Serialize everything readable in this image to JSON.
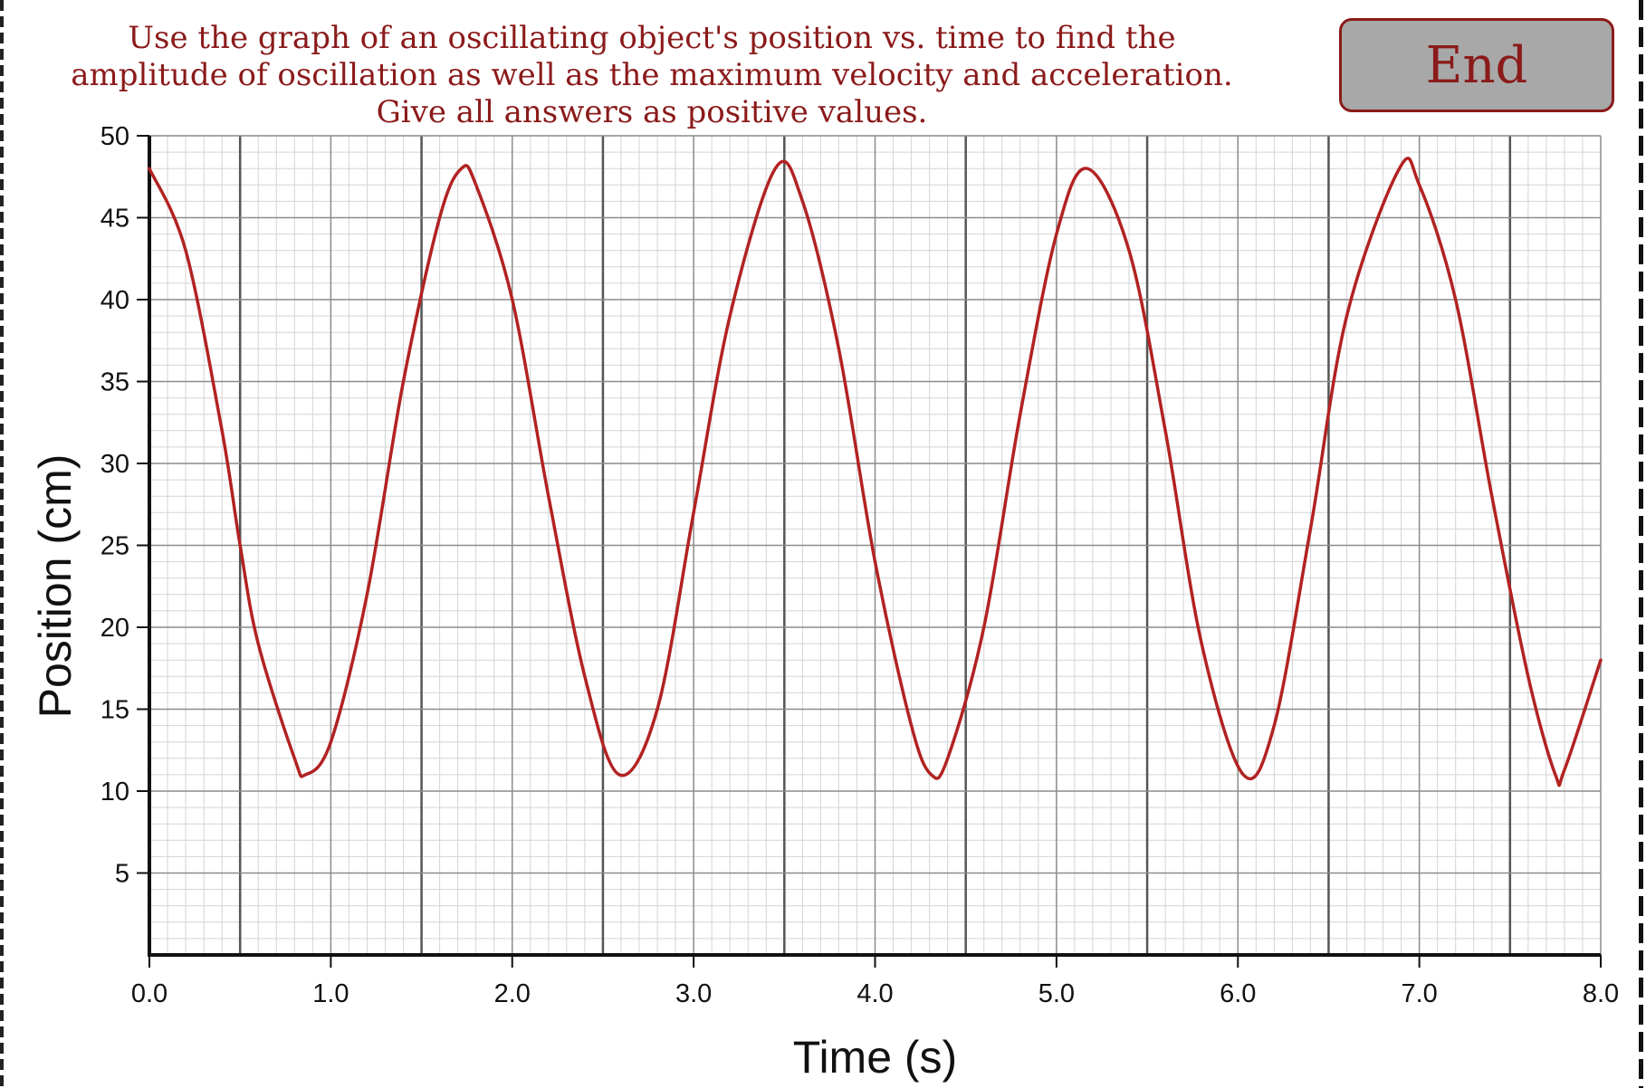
{
  "question": {
    "text": "Use the graph of an oscillating object's position vs. time to find the amplitude of oscillation as well as the maximum velocity and acceleration. Give all answers as positive values.",
    "color": "#8b1a1a"
  },
  "end_button": {
    "label": "End",
    "background": "#a8a8a8",
    "border_color": "#8b1a1a"
  },
  "chart_data": {
    "type": "line",
    "title": "",
    "xlabel": "Time (s)",
    "ylabel": "Position (cm)",
    "xlim": [
      0,
      8
    ],
    "ylim": [
      0,
      50
    ],
    "x_ticks": [
      "0.0",
      "1.0",
      "2.0",
      "3.0",
      "4.0",
      "5.0",
      "6.0",
      "7.0",
      "8.0"
    ],
    "y_ticks": [
      "5",
      "10",
      "15",
      "20",
      "25",
      "30",
      "35",
      "40",
      "45",
      "50"
    ],
    "grid": true,
    "series": [
      {
        "color": "#b22222",
        "x": [
          0.0,
          0.2,
          0.4,
          0.5,
          0.6,
          0.8,
          0.86,
          1.0,
          1.2,
          1.4,
          1.6,
          1.72,
          1.8,
          2.0,
          2.2,
          2.4,
          2.59,
          2.8,
          3.0,
          3.2,
          3.45,
          3.6,
          3.8,
          4.0,
          4.2,
          4.31,
          4.4,
          4.6,
          4.8,
          5.0,
          5.17,
          5.4,
          5.6,
          5.8,
          6.03,
          6.2,
          6.4,
          6.6,
          6.89,
          7.0,
          7.2,
          7.4,
          7.6,
          7.75,
          7.8,
          8.0
        ],
        "y": [
          48,
          43,
          32,
          25,
          19,
          12,
          11,
          13,
          22,
          35,
          45,
          48,
          47,
          40,
          28,
          17,
          11,
          15,
          27,
          39,
          48,
          46,
          37,
          24,
          14,
          11,
          12,
          20,
          33,
          44,
          48,
          43,
          32,
          19,
          11,
          14,
          26,
          39,
          48,
          47,
          40,
          28,
          17,
          11,
          11.3,
          18
        ]
      }
    ]
  }
}
